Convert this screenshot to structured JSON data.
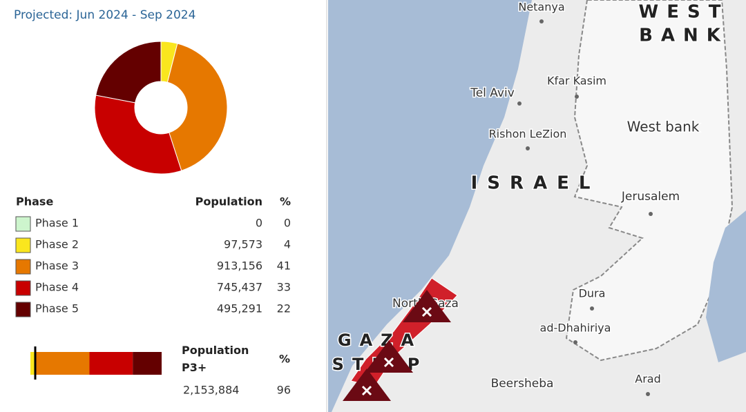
{
  "chart_data": {
    "type": "pie",
    "title": "Projected: Jun 2024 - Sep 2024",
    "columns": [
      "Phase",
      "Population",
      "%"
    ],
    "categories": [
      "Phase 1",
      "Phase 2",
      "Phase 3",
      "Phase 4",
      "Phase 5"
    ],
    "colors": [
      "#cdf5cd",
      "#fae61e",
      "#e67800",
      "#c80000",
      "#640000"
    ],
    "values": [
      0,
      4,
      41,
      33,
      22
    ],
    "population": {
      "values": [
        0,
        97573,
        913156,
        745437,
        495291
      ],
      "value_labels": [
        "0",
        "97,573",
        "913,156",
        "745,437",
        "495,291"
      ]
    },
    "total": {
      "label": "Population P3+",
      "value": 2153884,
      "value_label": "2,153,884",
      "percent_header": "%",
      "percent": 96
    }
  },
  "map": {
    "labels": [
      "Netanya",
      "Kfar Kasim",
      "Tel Aviv",
      "Rishon LeZion",
      "West bank",
      "ISRAEL",
      "Jerusalem",
      "Dura",
      "ad-Dhahiriya",
      "Beersheba",
      "Arad",
      "North Gaza",
      "WEST",
      "BANK",
      "GAZA",
      "STRIP"
    ]
  }
}
